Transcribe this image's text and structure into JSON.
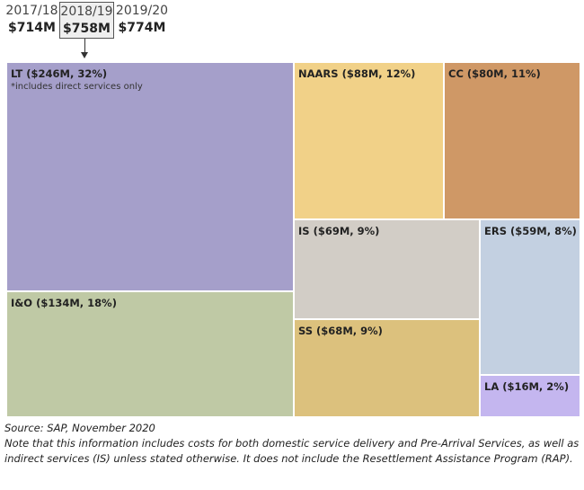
{
  "years": [
    {
      "label": "2017/18",
      "total": "$714M",
      "selected": false
    },
    {
      "label": "2018/19",
      "total": "$758M",
      "selected": true
    },
    {
      "label": "2019/20",
      "total": "$774M",
      "selected": false
    }
  ],
  "chart_data": {
    "type": "treemap",
    "fiscal_year": "2018/19",
    "total": "$758M",
    "unit": "$M",
    "tiles": [
      {
        "id": "lt",
        "label": "LT ($246M, 32%)",
        "name": "LT",
        "value": 246,
        "percent": 32,
        "color": "#a59fca",
        "note": "*includes direct services only"
      },
      {
        "id": "io",
        "label": "I&O ($134M, 18%)",
        "name": "I&O",
        "value": 134,
        "percent": 18,
        "color": "#bfc9a5"
      },
      {
        "id": "naars",
        "label": "NAARS ($88M, 12%)",
        "name": "NAARS",
        "value": 88,
        "percent": 12,
        "color": "#f1d188"
      },
      {
        "id": "cc",
        "label": "CC ($80M, 11%)",
        "name": "CC",
        "value": 80,
        "percent": 11,
        "color": "#cf9866"
      },
      {
        "id": "is",
        "label": "IS ($69M, 9%)",
        "name": "IS",
        "value": 69,
        "percent": 9,
        "color": "#d2cdc6"
      },
      {
        "id": "ss",
        "label": "SS ($68M, 9%)",
        "name": "SS",
        "value": 68,
        "percent": 9,
        "color": "#dcc17d"
      },
      {
        "id": "ers",
        "label": "ERS ($59M, 8%)",
        "name": "ERS",
        "value": 59,
        "percent": 8,
        "color": "#c3d0e1"
      },
      {
        "id": "la",
        "label": "LA ($16M, 2%)",
        "name": "LA",
        "value": 16,
        "percent": 2,
        "color": "#c4b6ef"
      }
    ]
  },
  "footer": {
    "source": "Source: SAP, November 2020",
    "note": "Note that this information includes costs for both domestic service delivery and Pre-Arrival Services, as well as indirect services (IS) unless stated otherwise. It does not include the Resettlement Assistance Program (RAP)."
  }
}
